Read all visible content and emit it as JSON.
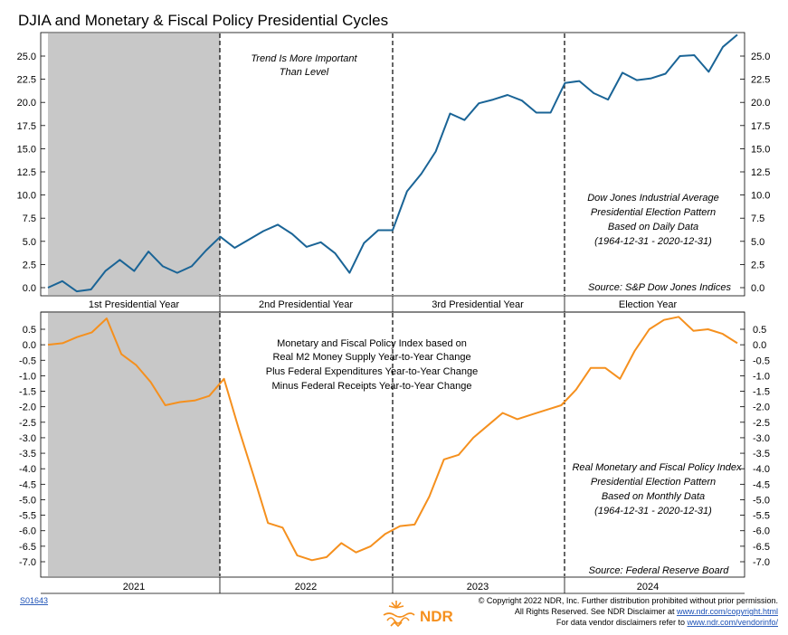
{
  "chart_data": [
    {
      "type": "line",
      "title": "DJIA and Monetary & Fiscal Policy Presidential Cycles",
      "series": [
        {
          "name": "Dow Jones Industrial Average Presidential Election Pattern",
          "color": "#1a6496",
          "values": [
            0.0,
            0.7,
            -0.4,
            -0.2,
            1.8,
            3.0,
            1.8,
            3.9,
            2.3,
            1.6,
            2.3,
            4.0,
            5.5,
            4.3,
            5.2,
            6.1,
            6.8,
            5.8,
            4.4,
            4.9,
            3.7,
            1.6,
            4.8,
            6.2,
            6.2,
            10.4,
            12.3,
            14.7,
            18.8,
            18.1,
            19.9,
            20.3,
            20.8,
            20.2,
            18.9,
            18.9,
            22.1,
            22.3,
            21.0,
            20.3,
            23.2,
            22.4,
            22.6,
            23.1,
            25.0,
            25.1,
            23.3,
            26.0,
            27.3
          ]
        }
      ],
      "ylim": [
        -0.7,
        27.7
      ],
      "yticks": [
        "0.0",
        "2.5",
        "5.0",
        "7.5",
        "10.0",
        "12.5",
        "15.0",
        "17.5",
        "20.0",
        "22.5",
        "25.0"
      ],
      "period_labels": [
        "1st Presidential Year",
        "2nd Presidential Year",
        "3rd Presidential Year",
        "Election Year"
      ],
      "annotations": {
        "trend_line1": "Trend Is More Important",
        "trend_line2": "Than Level",
        "desc_line1": "Dow Jones Industrial Average",
        "desc_line2": "Presidential Election Pattern",
        "desc_line3": "Based on Daily Data",
        "desc_line4": "(1964-12-31 - 2020-12-31)",
        "source": "Source:  S&P Dow Jones Indices"
      }
    },
    {
      "type": "line",
      "series": [
        {
          "name": "Real Monetary and Fiscal Policy Index Presidential Election Pattern",
          "color": "#f5901e",
          "values": [
            0.0,
            0.05,
            0.25,
            0.4,
            0.85,
            -0.3,
            -0.65,
            -1.2,
            -1.95,
            -1.85,
            -1.8,
            -1.65,
            -1.1,
            -2.7,
            -4.2,
            -5.75,
            -5.9,
            -6.8,
            -6.95,
            -6.85,
            -6.4,
            -6.7,
            -6.5,
            -6.1,
            -5.85,
            -5.8,
            -4.9,
            -3.7,
            -3.55,
            -3.0,
            -2.6,
            -2.2,
            -2.4,
            -2.25,
            -2.1,
            -1.95,
            -1.45,
            -0.75,
            -0.75,
            -1.1,
            -0.2,
            0.5,
            0.8,
            0.9,
            0.45,
            0.5,
            0.35,
            0.05
          ]
        }
      ],
      "ylim": [
        -7.3,
        0.9
      ],
      "yticks": [
        "0.5",
        "0.0",
        "-0.5",
        "-1.0",
        "-1.5",
        "-2.0",
        "-2.5",
        "-3.0",
        "-3.5",
        "-4.0",
        "-4.5",
        "-5.0",
        "-5.5",
        "-6.0",
        "-6.5",
        "-7.0"
      ],
      "x_labels": [
        "2021",
        "2022",
        "2023",
        "2024"
      ],
      "annotations": {
        "mid_line1": "Monetary and Fiscal Policy Index based on",
        "mid_line2": "Real M2 Money Supply Year-to-Year Change",
        "mid_line3": "Plus Federal Expenditures Year-to-Year Change",
        "mid_line4": "Minus Federal Receipts Year-to-Year Change",
        "desc_line1": "Real Monetary and Fiscal Policy Index",
        "desc_line2": "Presidential Election Pattern",
        "desc_line3": "Based on Monthly Data",
        "desc_line4": "(1964-12-31 - 2020-12-31)",
        "source": "Source:   Federal Reserve Board"
      }
    }
  ],
  "footer": {
    "chart_id": "S01643",
    "logo_text": "NDR",
    "copyright_line1": "© Copyright 2022 NDR, Inc. Further distribution prohibited without prior permission.",
    "copyright_line2a": "All Rights Reserved. See NDR Disclaimer at ",
    "copyright_link1": "www.ndr.com/copyright.html",
    "copyright_line3a": "For data vendor disclaimers refer to ",
    "copyright_link2": "www.ndr.com/vendorinfo/"
  }
}
